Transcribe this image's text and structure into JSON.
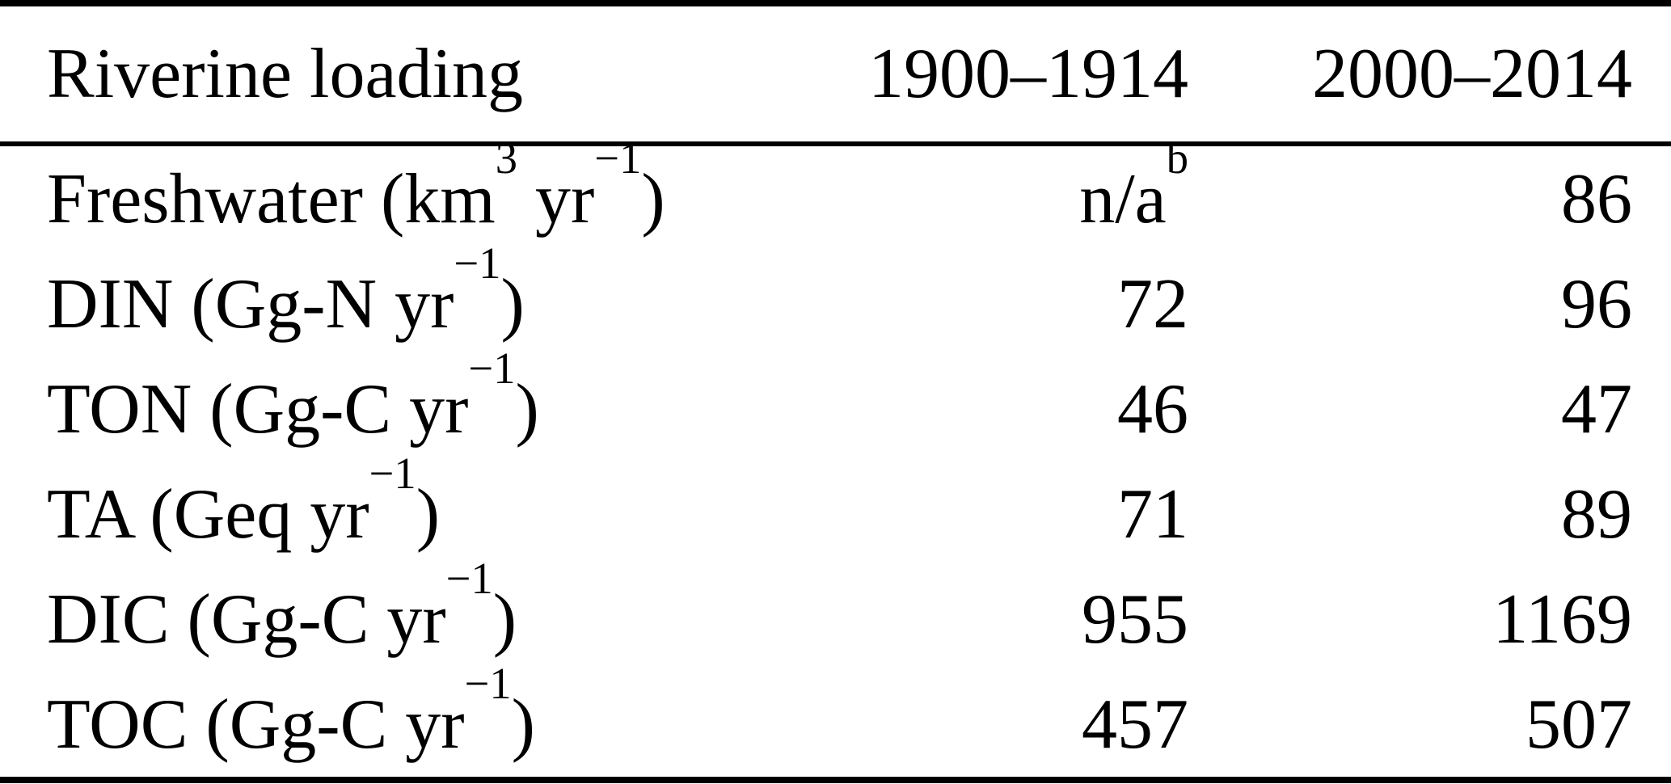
{
  "table": {
    "title": "Riverine loading table",
    "colors": {
      "text": "#000000",
      "background": "#ffffff",
      "rule": "#000000"
    },
    "header": {
      "col0": "Riverine loading",
      "col1": "1900–1914",
      "col2": "2000–2014"
    },
    "rows": [
      {
        "label": {
          "text": "Freshwater (km",
          "sup": "3",
          "unit": " yr",
          "exp": "−1",
          "close": ")"
        },
        "v1900": "n/a",
        "v1900_sup": "b",
        "v2000": "86"
      },
      {
        "label": {
          "text": "DIN (Gg-N",
          "sup": "",
          "unit": " yr",
          "exp": "−1",
          "close": ")"
        },
        "v1900": "72",
        "v1900_sup": "",
        "v2000": "96"
      },
      {
        "label": {
          "text": "TON (Gg-C",
          "sup": "",
          "unit": " yr",
          "exp": "−1",
          "close": ")"
        },
        "v1900": "46",
        "v1900_sup": "",
        "v2000": "47"
      },
      {
        "label": {
          "text": "TA (Geq",
          "sup": "",
          "unit": " yr",
          "exp": "−1",
          "close": ")"
        },
        "v1900": "71",
        "v1900_sup": "",
        "v2000": "89"
      },
      {
        "label": {
          "text": "DIC (Gg-C",
          "sup": "",
          "unit": " yr",
          "exp": "−1",
          "close": ")"
        },
        "v1900": "955",
        "v1900_sup": "",
        "v2000": "1169"
      },
      {
        "label": {
          "text": "TOC (Gg-C",
          "sup": "",
          "unit": " yr",
          "exp": "−1",
          "close": ")"
        },
        "v1900": "457",
        "v1900_sup": "",
        "v2000": "507"
      }
    ]
  }
}
